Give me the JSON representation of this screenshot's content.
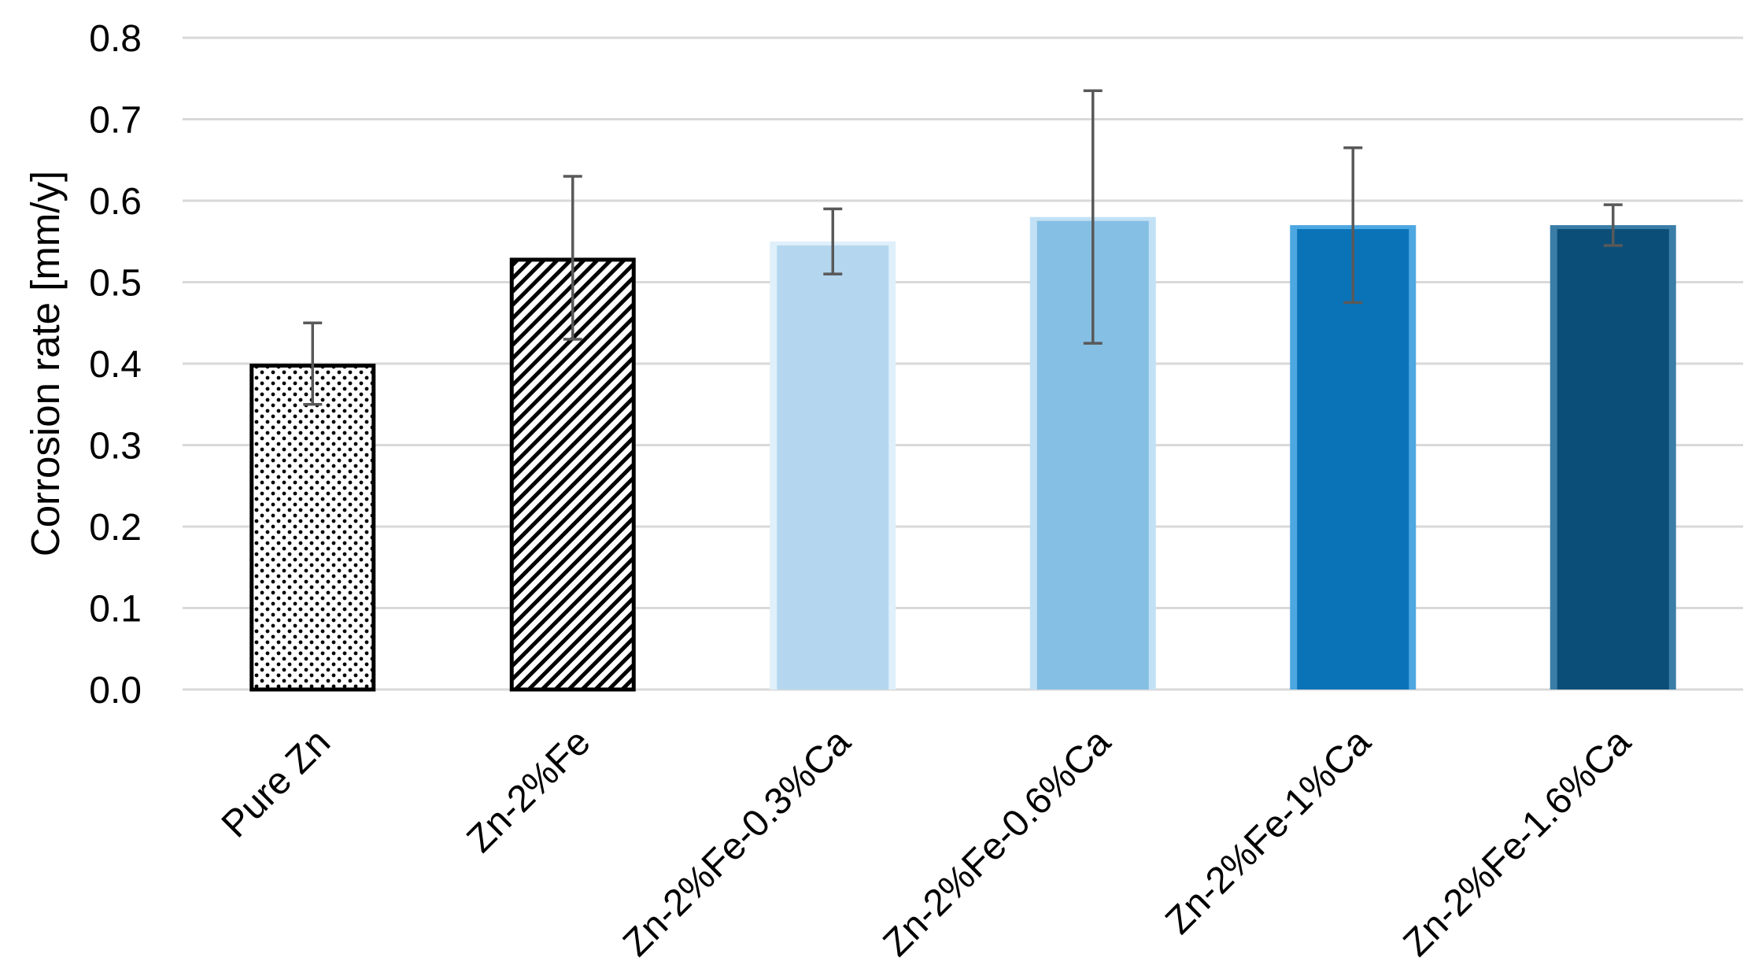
{
  "chart_data": {
    "type": "bar",
    "title": "",
    "xlabel": "",
    "ylabel": "Corrosion rate [mm/y]",
    "ylim": [
      0,
      0.8
    ],
    "yticks": [
      "0.0",
      "0.1",
      "0.2",
      "0.3",
      "0.4",
      "0.5",
      "0.6",
      "0.7",
      "0.8"
    ],
    "grid": true,
    "legend": "none",
    "categories": [
      "Pure Zn",
      "Zn-2%Fe",
      "Zn-2%Fe-0.3%Ca",
      "Zn-2%Fe-0.6%Ca",
      "Zn-2%Fe-1%Ca",
      "Zn-2%Fe-1.6%Ca"
    ],
    "values": [
      0.4,
      0.53,
      0.55,
      0.58,
      0.57,
      0.57
    ],
    "errors": [
      0.05,
      0.1,
      0.04,
      0.155,
      0.095,
      0.025
    ],
    "bar_styles": [
      {
        "fill": "dots",
        "color": "#000000",
        "border": "#000000"
      },
      {
        "fill": "diagonal-hatch",
        "color": "#000000",
        "border": "#000000"
      },
      {
        "fill": "solid",
        "color": "#b4d7ef",
        "border": "#dff0fb"
      },
      {
        "fill": "solid",
        "color": "#86bfe4",
        "border": "#c2e1f5"
      },
      {
        "fill": "solid",
        "color": "#0a73b8",
        "border": "#4da7e0"
      },
      {
        "fill": "solid",
        "color": "#0b4e78",
        "border": "#3a7ea8"
      }
    ]
  }
}
